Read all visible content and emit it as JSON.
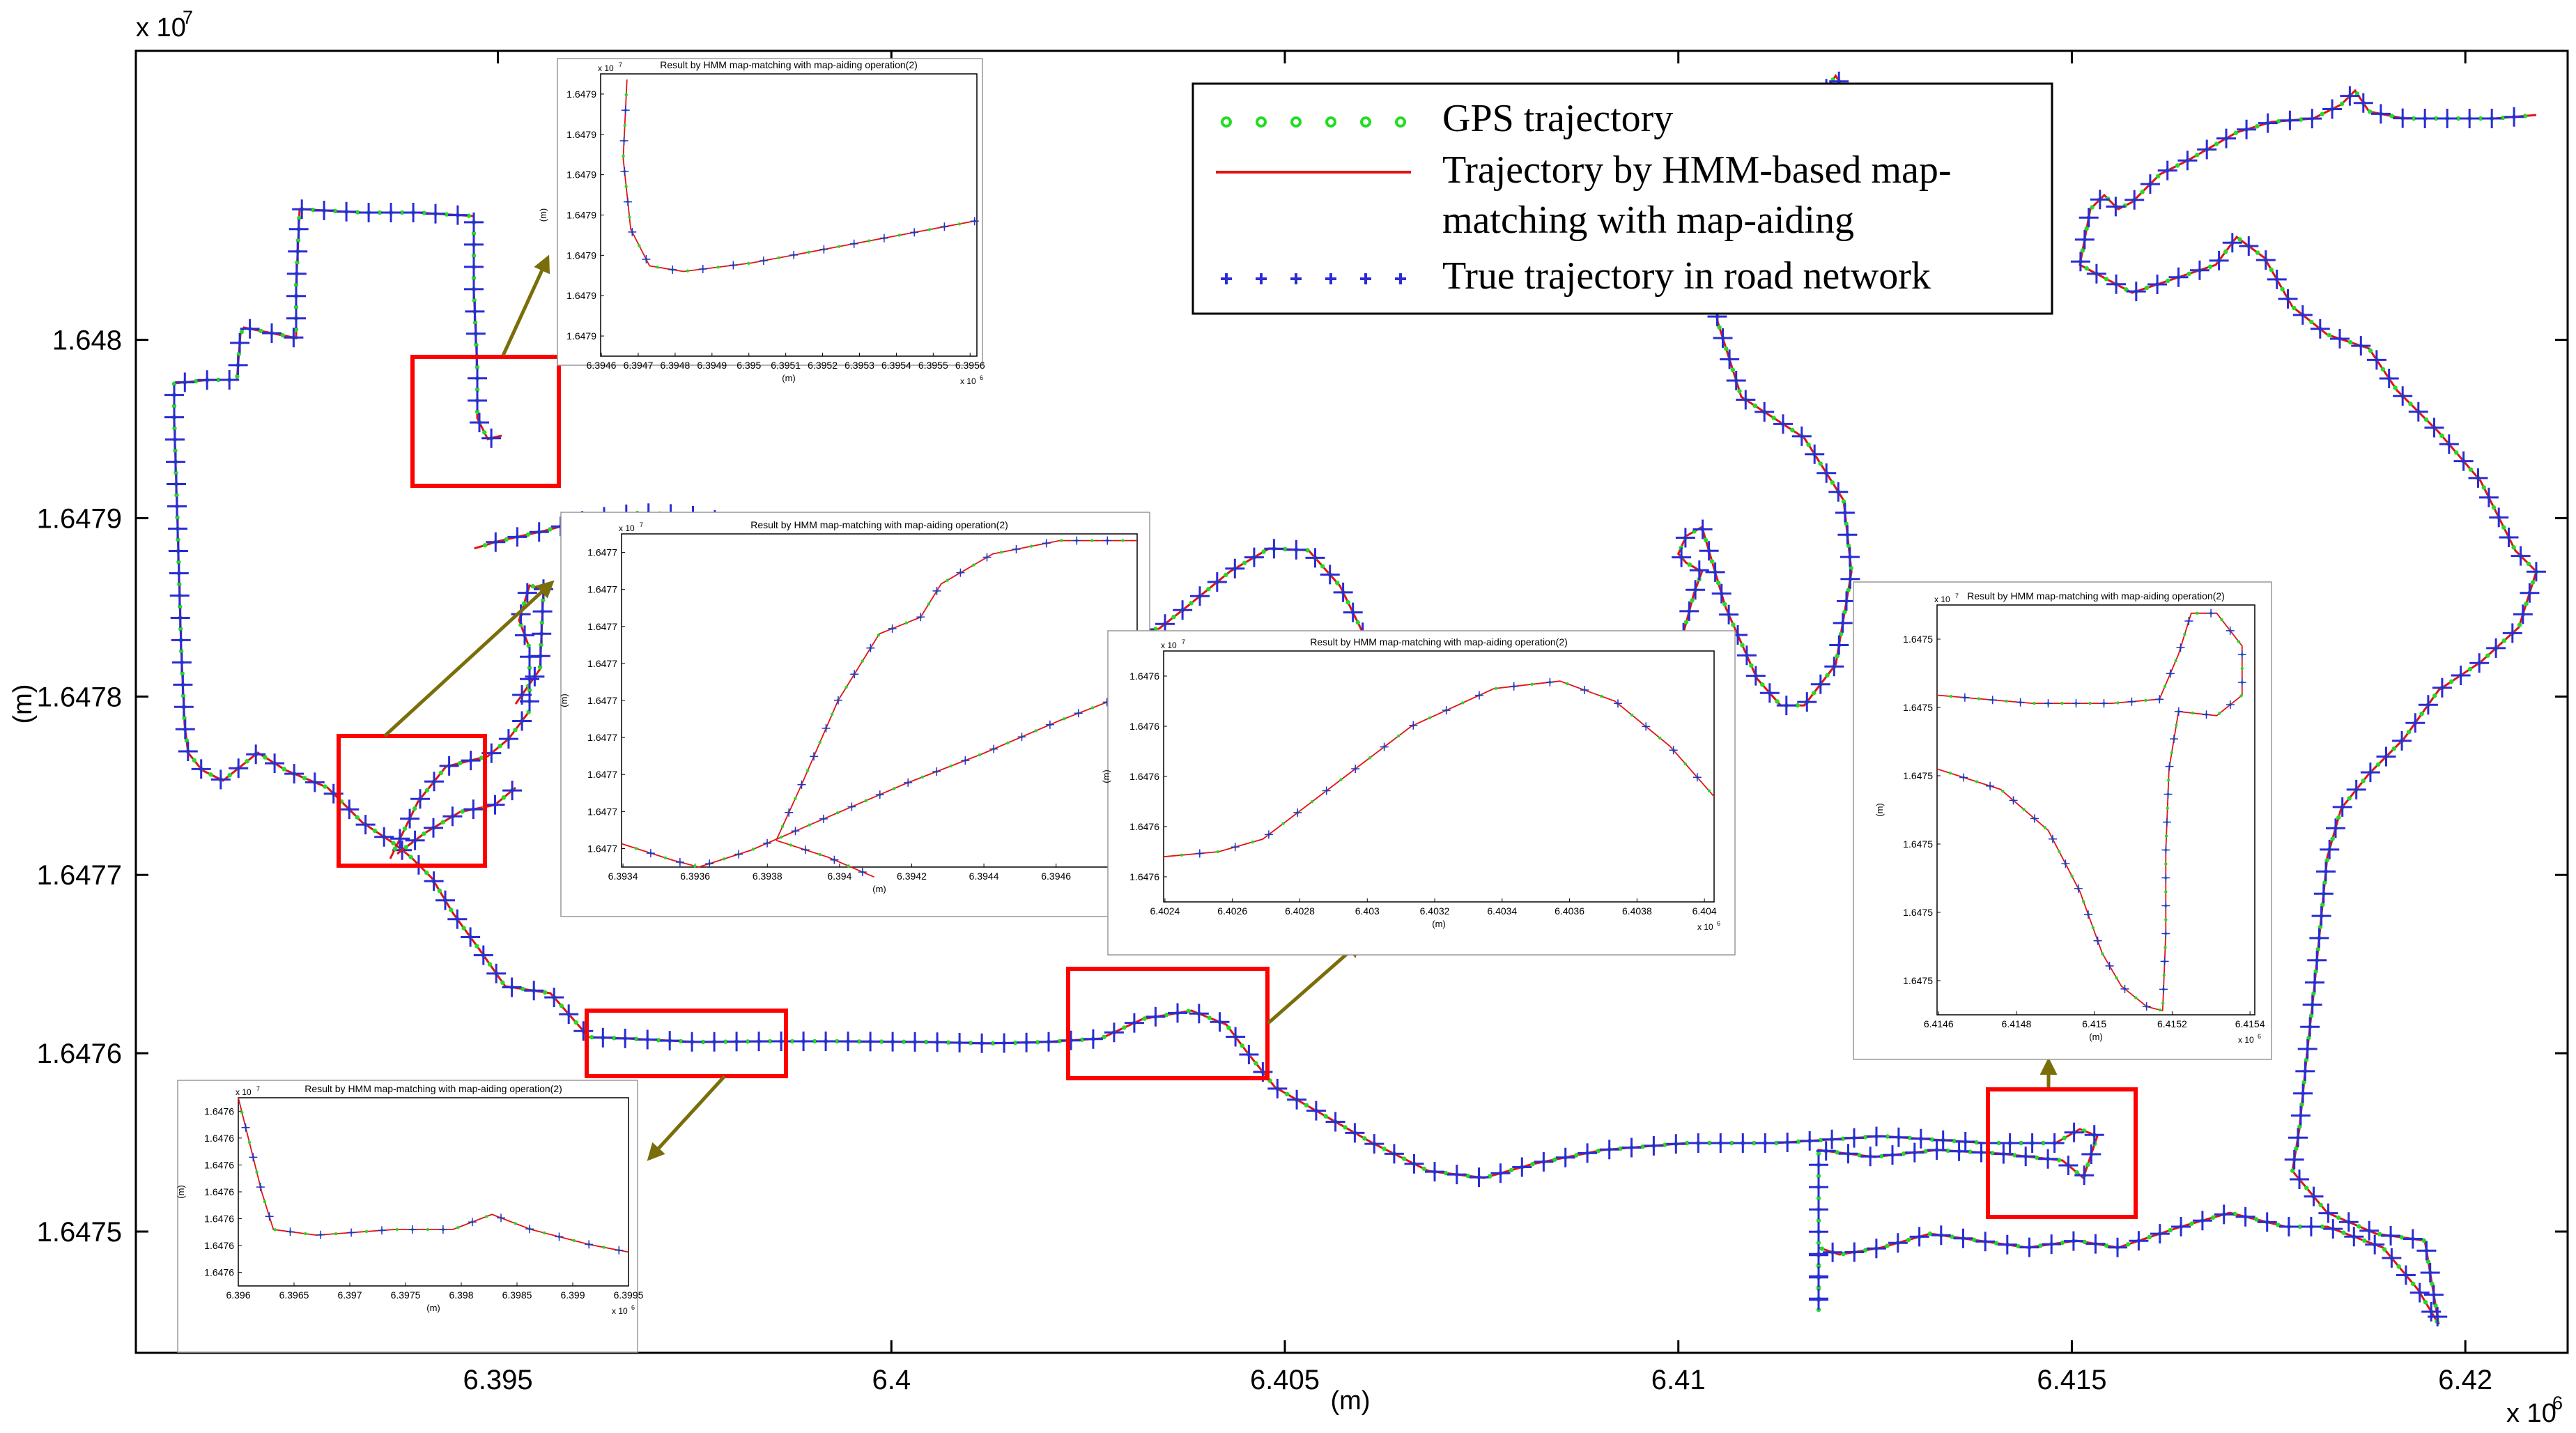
{
  "colors": {
    "gps": "#22dd22",
    "hmm": "#e01515",
    "truth": "#2b2bd8",
    "highlight": "#ff0000",
    "arrow": "#7a6e0a",
    "axis": "#000000"
  },
  "chart_data": {
    "type": "line",
    "title": "",
    "xlabel": "(m)",
    "ylabel": "(m)",
    "x_exponent_label": "x 10",
    "x_exponent_power": "6",
    "y_exponent_label": "x 10",
    "y_exponent_power": "7",
    "xlim": [
      6.3904,
      6.4213
    ],
    "ylim": [
      1.647432,
      1.648162
    ],
    "xticks": [
      6.395,
      6.4,
      6.405,
      6.41,
      6.415,
      6.42
    ],
    "xtick_labels": [
      "6.395",
      "6.4",
      "6.405",
      "6.41",
      "6.415",
      "6.42"
    ],
    "yticks": [
      1.6475,
      1.6476,
      1.6477,
      1.6478,
      1.6479,
      1.648
    ],
    "ytick_labels": [
      "1.6475",
      "1.6476",
      "1.6477",
      "1.6478",
      "1.6479",
      "1.648"
    ],
    "legend": {
      "position": "top-right",
      "entries": [
        {
          "name": "GPS trajectory",
          "marker": "circle",
          "color": "#22dd22"
        },
        {
          "name": "Trajectory by HMM-based map-matching with map-aiding",
          "lines": [
            "Trajectory by HMM-based map-",
            "matching with map-aiding"
          ],
          "marker": "line",
          "color": "#e01515"
        },
        {
          "name": "True trajectory in road network",
          "marker": "plus",
          "color": "#2b2bd8"
        }
      ]
    },
    "series": [
      {
        "name": "True trajectory in road network",
        "points": [
          [
            6.3947,
            1.647883
          ],
          [
            6.395,
            1.647887
          ],
          [
            6.3956,
            1.647893
          ],
          [
            6.3962,
            1.6479
          ],
          [
            6.3968,
            1.647903
          ],
          [
            6.3974,
            1.647902
          ],
          [
            6.398,
            1.647897
          ],
          [
            6.3988,
            1.647886
          ],
          [
            6.3996,
            1.647874
          ],
          [
            6.4004,
            1.647862
          ],
          [
            6.4012,
            1.647852
          ],
          [
            6.402,
            1.647842
          ],
          [
            6.4028,
            1.647836
          ],
          [
            6.4034,
            1.647838
          ],
          [
            6.4038,
            1.647852
          ],
          [
            6.4043,
            1.64787
          ],
          [
            6.4048,
            1.647883
          ],
          [
            6.4053,
            1.647882
          ],
          [
            6.4057,
            1.647862
          ],
          [
            6.406,
            1.647835
          ],
          [
            6.4064,
            1.647812
          ],
          [
            6.4069,
            1.64781
          ],
          [
            6.4074,
            1.647805
          ],
          [
            6.4079,
            1.647798
          ],
          [
            6.4085,
            1.647795
          ],
          [
            6.4092,
            1.647798
          ],
          [
            6.4097,
            1.647808
          ],
          [
            6.41,
            1.647825
          ],
          [
            6.4102,
            1.647858
          ],
          [
            6.4103,
            1.64787
          ],
          [
            6.4101,
            1.647875
          ],
          [
            6.41,
            1.64788
          ],
          [
            6.4101,
            1.64789
          ],
          [
            6.4103,
            1.647895
          ],
          [
            6.4106,
            1.64785
          ],
          [
            6.411,
            1.64781
          ],
          [
            6.4113,
            1.647795
          ],
          [
            6.4116,
            1.647795
          ],
          [
            6.412,
            1.647818
          ],
          [
            6.4122,
            1.64787
          ],
          [
            6.4121,
            1.64791
          ],
          [
            6.4116,
            1.647945
          ],
          [
            6.4108,
            1.647968
          ],
          [
            6.4105,
            1.64801
          ],
          [
            6.4104,
            1.64806
          ],
          [
            6.4104,
            1.64811
          ],
          [
            6.4106,
            1.64812
          ],
          [
            6.4113,
            1.64812
          ],
          [
            6.4117,
            1.64813
          ],
          [
            6.412,
            1.648148
          ],
          [
            6.4123,
            1.648125
          ],
          [
            6.4127,
            1.648122
          ],
          [
            6.4138,
            1.648122
          ]
        ]
      }
    ],
    "insets": [
      {
        "title": "Result by HMM map-matching with map-aiding operation(2)",
        "xlabel": "(m)",
        "ylabel": "(m)",
        "exp_x": "x 10",
        "exp_x_power": "6",
        "exp_y": "x 10",
        "exp_y_power": "7",
        "xtick_labels": [
          "6.3946",
          "6.3947",
          "6.3948",
          "6.3949",
          "6.395",
          "6.3951",
          "6.3952",
          "6.3953",
          "6.3954",
          "6.3955",
          "6.3956"
        ],
        "ytick_labels": [
          "1.6479",
          "1.6479",
          "1.6479",
          "1.6479",
          "1.6479",
          "1.6479",
          "1.6479"
        ]
      },
      {
        "title": "Result by HMM map-matching with map-aiding operation(2)",
        "xlabel": "(m)",
        "ylabel": "(m)",
        "exp_x": "x 10",
        "exp_x_power": "6",
        "exp_y": "x 10",
        "exp_y_power": "7",
        "xtick_labels": [
          "6.3934",
          "6.3936",
          "6.3938",
          "6.394",
          "6.3942",
          "6.3944",
          "6.3946",
          "6.3948"
        ],
        "ytick_labels": [
          "1.6477",
          "1.6477",
          "1.6477",
          "1.6477",
          "1.6477",
          "1.6477",
          "1.6477",
          "1.6477",
          "1.6477"
        ]
      },
      {
        "title": "Result by HMM map-matching with map-aiding operation(2)",
        "xlabel": "(m)",
        "ylabel": "(m)",
        "exp_x": "x 10",
        "exp_x_power": "6",
        "exp_y": "x 10",
        "exp_y_power": "7",
        "xtick_labels": [
          "6.4024",
          "6.4026",
          "6.4028",
          "6.403",
          "6.4032",
          "6.4034",
          "6.4036",
          "6.4038",
          "6.404"
        ],
        "ytick_labels": [
          "1.6476",
          "1.6476",
          "1.6476",
          "1.6476",
          "1.6476"
        ]
      },
      {
        "title": "Result by HMM map-matching with map-aiding operation(2)",
        "xlabel": "(m)",
        "ylabel": "(m)",
        "exp_x": "x 10",
        "exp_x_power": "6",
        "exp_y": "x 10",
        "exp_y_power": "7",
        "xtick_labels": [
          "6.3965",
          "6.397",
          "6.3975",
          "6.398",
          "6.3985",
          "6.399",
          "6.3995"
        ],
        "xtick_first": "6.396",
        "ytick_labels": [
          "1.6476",
          "1.6476",
          "1.6476",
          "1.6476",
          "1.6476",
          "1.6476",
          "1.6476"
        ]
      },
      {
        "title": "Result by HMM map-matching with map-aiding operation(2)",
        "xlabel": "(m)",
        "ylabel": "(m)",
        "exp_x": "x 10",
        "exp_x_power": "6",
        "exp_y": "x 10",
        "exp_y_power": "7",
        "xtick_labels": [
          "6.4146",
          "6.4148",
          "6.415",
          "6.4152",
          "6.4154"
        ],
        "ytick_labels": [
          "1.6475",
          "1.6475",
          "1.6475",
          "1.6475",
          "1.6475",
          "1.6475"
        ]
      }
    ]
  }
}
